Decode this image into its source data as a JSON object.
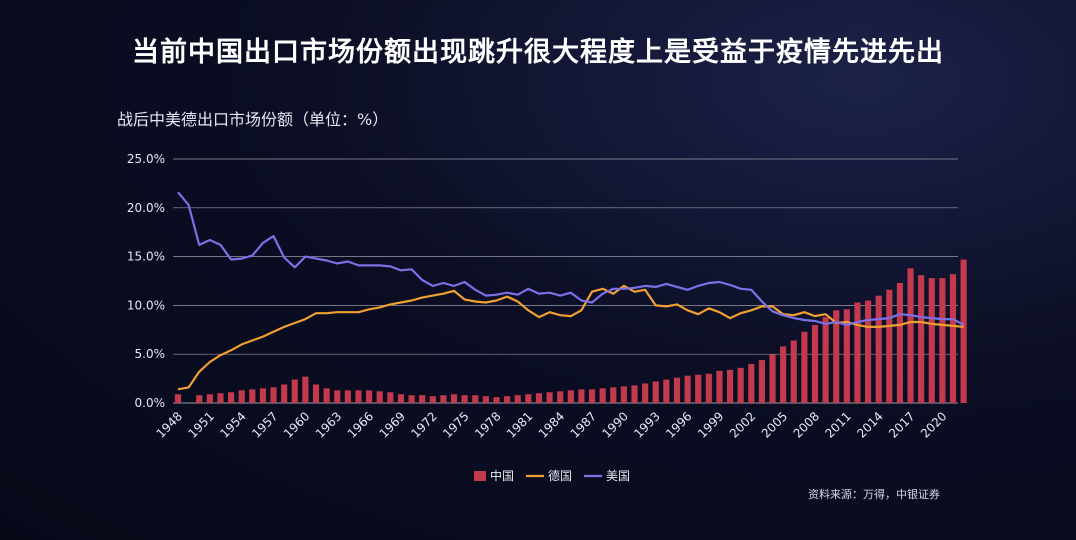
{
  "header": {
    "headline": "当前中国出口市场份额出现跳升很大程度上是受益于疫情先进先出"
  },
  "source_note": "资料来源：万得，中银证券",
  "colors": {
    "china": "#c23a4b",
    "germany": "#f0a030",
    "usa": "#7d6fe6",
    "grid": "#9a9aa8"
  },
  "chart_data": {
    "type": "bar+line",
    "title": "战后中美德出口市场份额（单位：%）",
    "ylim": [
      0,
      25
    ],
    "y_ticks": [
      "0.0%",
      "5.0%",
      "10.0%",
      "15.0%",
      "20.0%",
      "25.0%"
    ],
    "x_ticks": [
      "1948",
      "1951",
      "1954",
      "1957",
      "1960",
      "1963",
      "1966",
      "1969",
      "1972",
      "1975",
      "1978",
      "1981",
      "1984",
      "1987",
      "1990",
      "1993",
      "1996",
      "1999",
      "2002",
      "2005",
      "2008",
      "2011",
      "2014",
      "2017",
      "2020"
    ],
    "legend": [
      "中国",
      "德国",
      "美国"
    ],
    "x_start": 1948,
    "x_end": 2021,
    "series": [
      {
        "name": "中国",
        "kind": "bar",
        "values": [
          0.9,
          0.0,
          0.8,
          0.9,
          1.0,
          1.1,
          1.3,
          1.4,
          1.5,
          1.6,
          1.9,
          2.4,
          2.7,
          1.9,
          1.5,
          1.3,
          1.3,
          1.3,
          1.3,
          1.2,
          1.1,
          0.9,
          0.8,
          0.8,
          0.7,
          0.8,
          0.9,
          0.8,
          0.8,
          0.7,
          0.6,
          0.7,
          0.8,
          0.9,
          1.0,
          1.1,
          1.2,
          1.3,
          1.4,
          1.4,
          1.5,
          1.6,
          1.7,
          1.8,
          2.0,
          2.2,
          2.4,
          2.6,
          2.8,
          2.9,
          3.0,
          3.3,
          3.4,
          3.6,
          4.0,
          4.4,
          5.0,
          5.8,
          6.4,
          7.3,
          8.0,
          8.8,
          9.5,
          9.6,
          10.3,
          10.5,
          11.0,
          11.6,
          12.3,
          13.8,
          13.1,
          12.8,
          12.8,
          13.2,
          14.7
        ]
      },
      {
        "name": "德国",
        "kind": "line",
        "values": [
          1.4,
          1.6,
          3.2,
          4.2,
          4.9,
          5.4,
          6.0,
          6.4,
          6.8,
          7.3,
          7.8,
          8.2,
          8.6,
          9.2,
          9.2,
          9.3,
          9.3,
          9.3,
          9.6,
          9.8,
          10.1,
          10.3,
          10.5,
          10.8,
          11.0,
          11.2,
          11.5,
          10.6,
          10.4,
          10.3,
          10.5,
          10.9,
          10.4,
          9.5,
          8.8,
          9.3,
          9.0,
          8.9,
          9.5,
          11.4,
          11.7,
          11.2,
          12.0,
          11.4,
          11.6,
          10.0,
          9.9,
          10.1,
          9.5,
          9.1,
          9.7,
          9.3,
          8.7,
          9.2,
          9.5,
          9.9,
          9.9,
          9.1,
          9.0,
          9.3,
          8.9,
          9.1,
          8.2,
          8.3,
          8.0,
          7.8,
          7.8,
          7.9,
          8.0,
          8.3,
          8.3,
          8.1,
          8.0,
          7.9,
          7.8
        ]
      },
      {
        "name": "美国",
        "kind": "line",
        "values": [
          21.6,
          20.3,
          16.2,
          16.7,
          16.2,
          14.7,
          14.8,
          15.1,
          16.4,
          17.1,
          14.9,
          13.9,
          15.0,
          14.8,
          14.6,
          14.3,
          14.5,
          14.1,
          14.1,
          14.1,
          14.0,
          13.6,
          13.7,
          12.6,
          12.0,
          12.3,
          12.0,
          12.4,
          11.6,
          11.0,
          11.1,
          11.3,
          11.1,
          11.7,
          11.2,
          11.3,
          11.0,
          11.3,
          10.5,
          10.3,
          11.2,
          11.7,
          11.7,
          11.8,
          12.0,
          11.9,
          12.2,
          11.9,
          11.6,
          12.0,
          12.3,
          12.4,
          12.1,
          11.7,
          11.6,
          10.4,
          9.4,
          9.0,
          8.7,
          8.5,
          8.4,
          8.1,
          8.3,
          8.0,
          8.3,
          8.5,
          8.6,
          8.7,
          9.1,
          9.0,
          8.8,
          8.7,
          8.6,
          8.6,
          8.0
        ]
      }
    ]
  }
}
